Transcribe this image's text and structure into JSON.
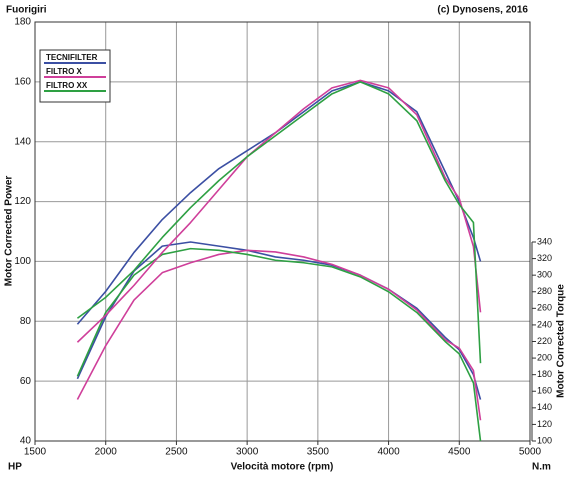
{
  "chart_data": {
    "type": "line",
    "title": "Fuorigiri",
    "subtitle": "(c) Dynosens, 2016",
    "x_label": "Velocità motore (rpm)",
    "y_label": "Motor Corrected Power",
    "y2_label": "Motor Corrected Torque",
    "y_unit": "HP",
    "y2_unit": "N.m",
    "x": [
      1800,
      2000,
      2200,
      2400,
      2600,
      2800,
      3000,
      3200,
      3400,
      3600,
      3800,
      4000,
      4200,
      4400,
      4500,
      4600,
      4650
    ],
    "xlim": [
      1500,
      5000
    ],
    "xticks": [
      1500,
      2000,
      2500,
      3000,
      3500,
      4000,
      4500,
      5000
    ],
    "ylim": [
      40,
      180
    ],
    "yticks": [
      40,
      60,
      80,
      100,
      120,
      140,
      160,
      180
    ],
    "y2lim": [
      100,
      340
    ],
    "y2ticks": [
      100,
      120,
      140,
      160,
      180,
      200,
      220,
      240,
      260,
      280,
      300,
      320,
      340
    ],
    "grid": true,
    "legend": "upper left",
    "series": [
      {
        "name": "TECNIFILTER",
        "color": "#3b4fa3",
        "values": [
          79,
          90,
          103,
          114,
          123,
          131,
          137,
          143,
          150,
          157,
          160,
          157,
          150,
          130,
          120,
          108,
          100
        ]
      },
      {
        "name": "FILTRO X",
        "color": "#cf3f9a",
        "values": [
          73,
          82,
          92,
          103,
          113,
          124,
          135,
          143,
          151,
          158,
          160.5,
          158,
          149,
          128,
          121,
          105,
          83
        ]
      },
      {
        "name": "FILTRO XX",
        "color": "#2ea043",
        "values": [
          81,
          88,
          97,
          108,
          118,
          127,
          135,
          142,
          149,
          156,
          160,
          156,
          147,
          127,
          119,
          113,
          66
        ]
      }
    ],
    "torque_series": [
      {
        "color": "#3b4fa3",
        "axis": "y2",
        "values": [
          175,
          250,
          305,
          335,
          340,
          335,
          330,
          322,
          318,
          312,
          300,
          283,
          260,
          225,
          210,
          180,
          150
        ]
      },
      {
        "color": "#cf3f9a",
        "axis": "y2",
        "values": [
          150,
          215,
          270,
          303,
          315,
          325,
          330,
          328,
          322,
          313,
          300,
          283,
          258,
          222,
          212,
          185,
          125
        ]
      },
      {
        "color": "#2ea043",
        "axis": "y2",
        "values": [
          178,
          255,
          300,
          325,
          332,
          330,
          325,
          318,
          315,
          310,
          298,
          280,
          255,
          220,
          205,
          170,
          100
        ]
      }
    ]
  }
}
